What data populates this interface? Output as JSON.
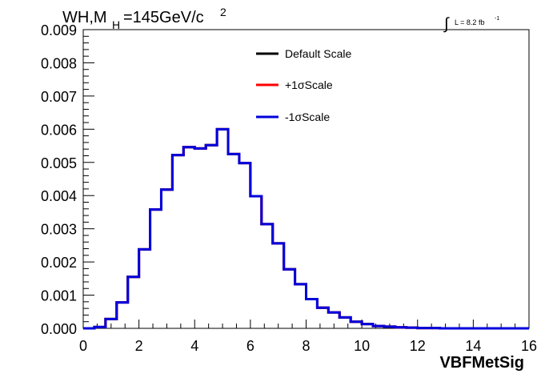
{
  "chart_data": {
    "type": "line",
    "title_main": "WH,M",
    "title_sub": "H",
    "title_rest": "=145GeV/c",
    "title_sup": "2",
    "lumi_label": "L = 8.2 fb",
    "lumi_sup": "-1",
    "lumi_integral": "∫",
    "xlabel": "VBFMetSig",
    "xlim": [
      0,
      16
    ],
    "ylim": [
      0,
      0.009
    ],
    "xticks": [
      0,
      2,
      4,
      6,
      8,
      10,
      12,
      14,
      16
    ],
    "yticks": [
      "0.000",
      "0.001",
      "0.002",
      "0.003",
      "0.004",
      "0.005",
      "0.006",
      "0.007",
      "0.008",
      "0.009"
    ],
    "bin_width": 0.4,
    "bin_low_edges": [
      0,
      0.4,
      0.8,
      1.2,
      1.6,
      2.0,
      2.4,
      2.8,
      3.2,
      3.6,
      4.0,
      4.4,
      4.8,
      5.2,
      5.6,
      6.0,
      6.4,
      6.8,
      7.2,
      7.6,
      8.0,
      8.4,
      8.8,
      9.2,
      9.6,
      10.0,
      10.4,
      10.8,
      11.2,
      11.6,
      12.0,
      12.4,
      12.8,
      13.2,
      13.6,
      14.0,
      14.4,
      14.8,
      15.2,
      15.6
    ],
    "series": [
      {
        "name": "Default Scale",
        "color": "#000000",
        "values": [
          0.0,
          4e-05,
          0.00028,
          0.00078,
          0.00155,
          0.00238,
          0.00358,
          0.00418,
          0.00522,
          0.00546,
          0.00542,
          0.00552,
          0.006,
          0.00525,
          0.00498,
          0.00398,
          0.00314,
          0.00256,
          0.00178,
          0.00133,
          0.00088,
          0.00062,
          0.00048,
          0.00033,
          0.0002,
          0.00013,
          7e-05,
          5e-05,
          3e-05,
          2e-05,
          1e-05,
          1e-05,
          0.0,
          0.0,
          0.0,
          0.0,
          0.0,
          0.0,
          0.0,
          0.0
        ]
      },
      {
        "name": "+1σScale",
        "color": "#ff0000",
        "values": [
          0.0,
          4e-05,
          0.00028,
          0.00078,
          0.00155,
          0.00238,
          0.00358,
          0.00418,
          0.00522,
          0.00546,
          0.00542,
          0.00552,
          0.006,
          0.00525,
          0.00498,
          0.00398,
          0.00314,
          0.00256,
          0.00178,
          0.00133,
          0.00088,
          0.00062,
          0.00048,
          0.00033,
          0.0002,
          0.00013,
          7e-05,
          5e-05,
          3e-05,
          2e-05,
          1e-05,
          1e-05,
          0.0,
          0.0,
          0.0,
          0.0,
          0.0,
          0.0,
          0.0,
          0.0
        ]
      },
      {
        "name": "-1σScale",
        "color": "#0000dd",
        "values": [
          0.0,
          4e-05,
          0.00028,
          0.00078,
          0.00155,
          0.00238,
          0.00358,
          0.00418,
          0.00522,
          0.00546,
          0.00542,
          0.00552,
          0.006,
          0.00525,
          0.00498,
          0.00398,
          0.00314,
          0.00256,
          0.00178,
          0.00133,
          0.00088,
          0.00062,
          0.00048,
          0.00033,
          0.0002,
          0.00013,
          7e-05,
          5e-05,
          3e-05,
          2e-05,
          1e-05,
          1e-05,
          0.0,
          0.0,
          0.0,
          0.0,
          0.0,
          0.0,
          0.0,
          0.0
        ]
      }
    ],
    "legend_position": "top-right",
    "grid": false
  }
}
